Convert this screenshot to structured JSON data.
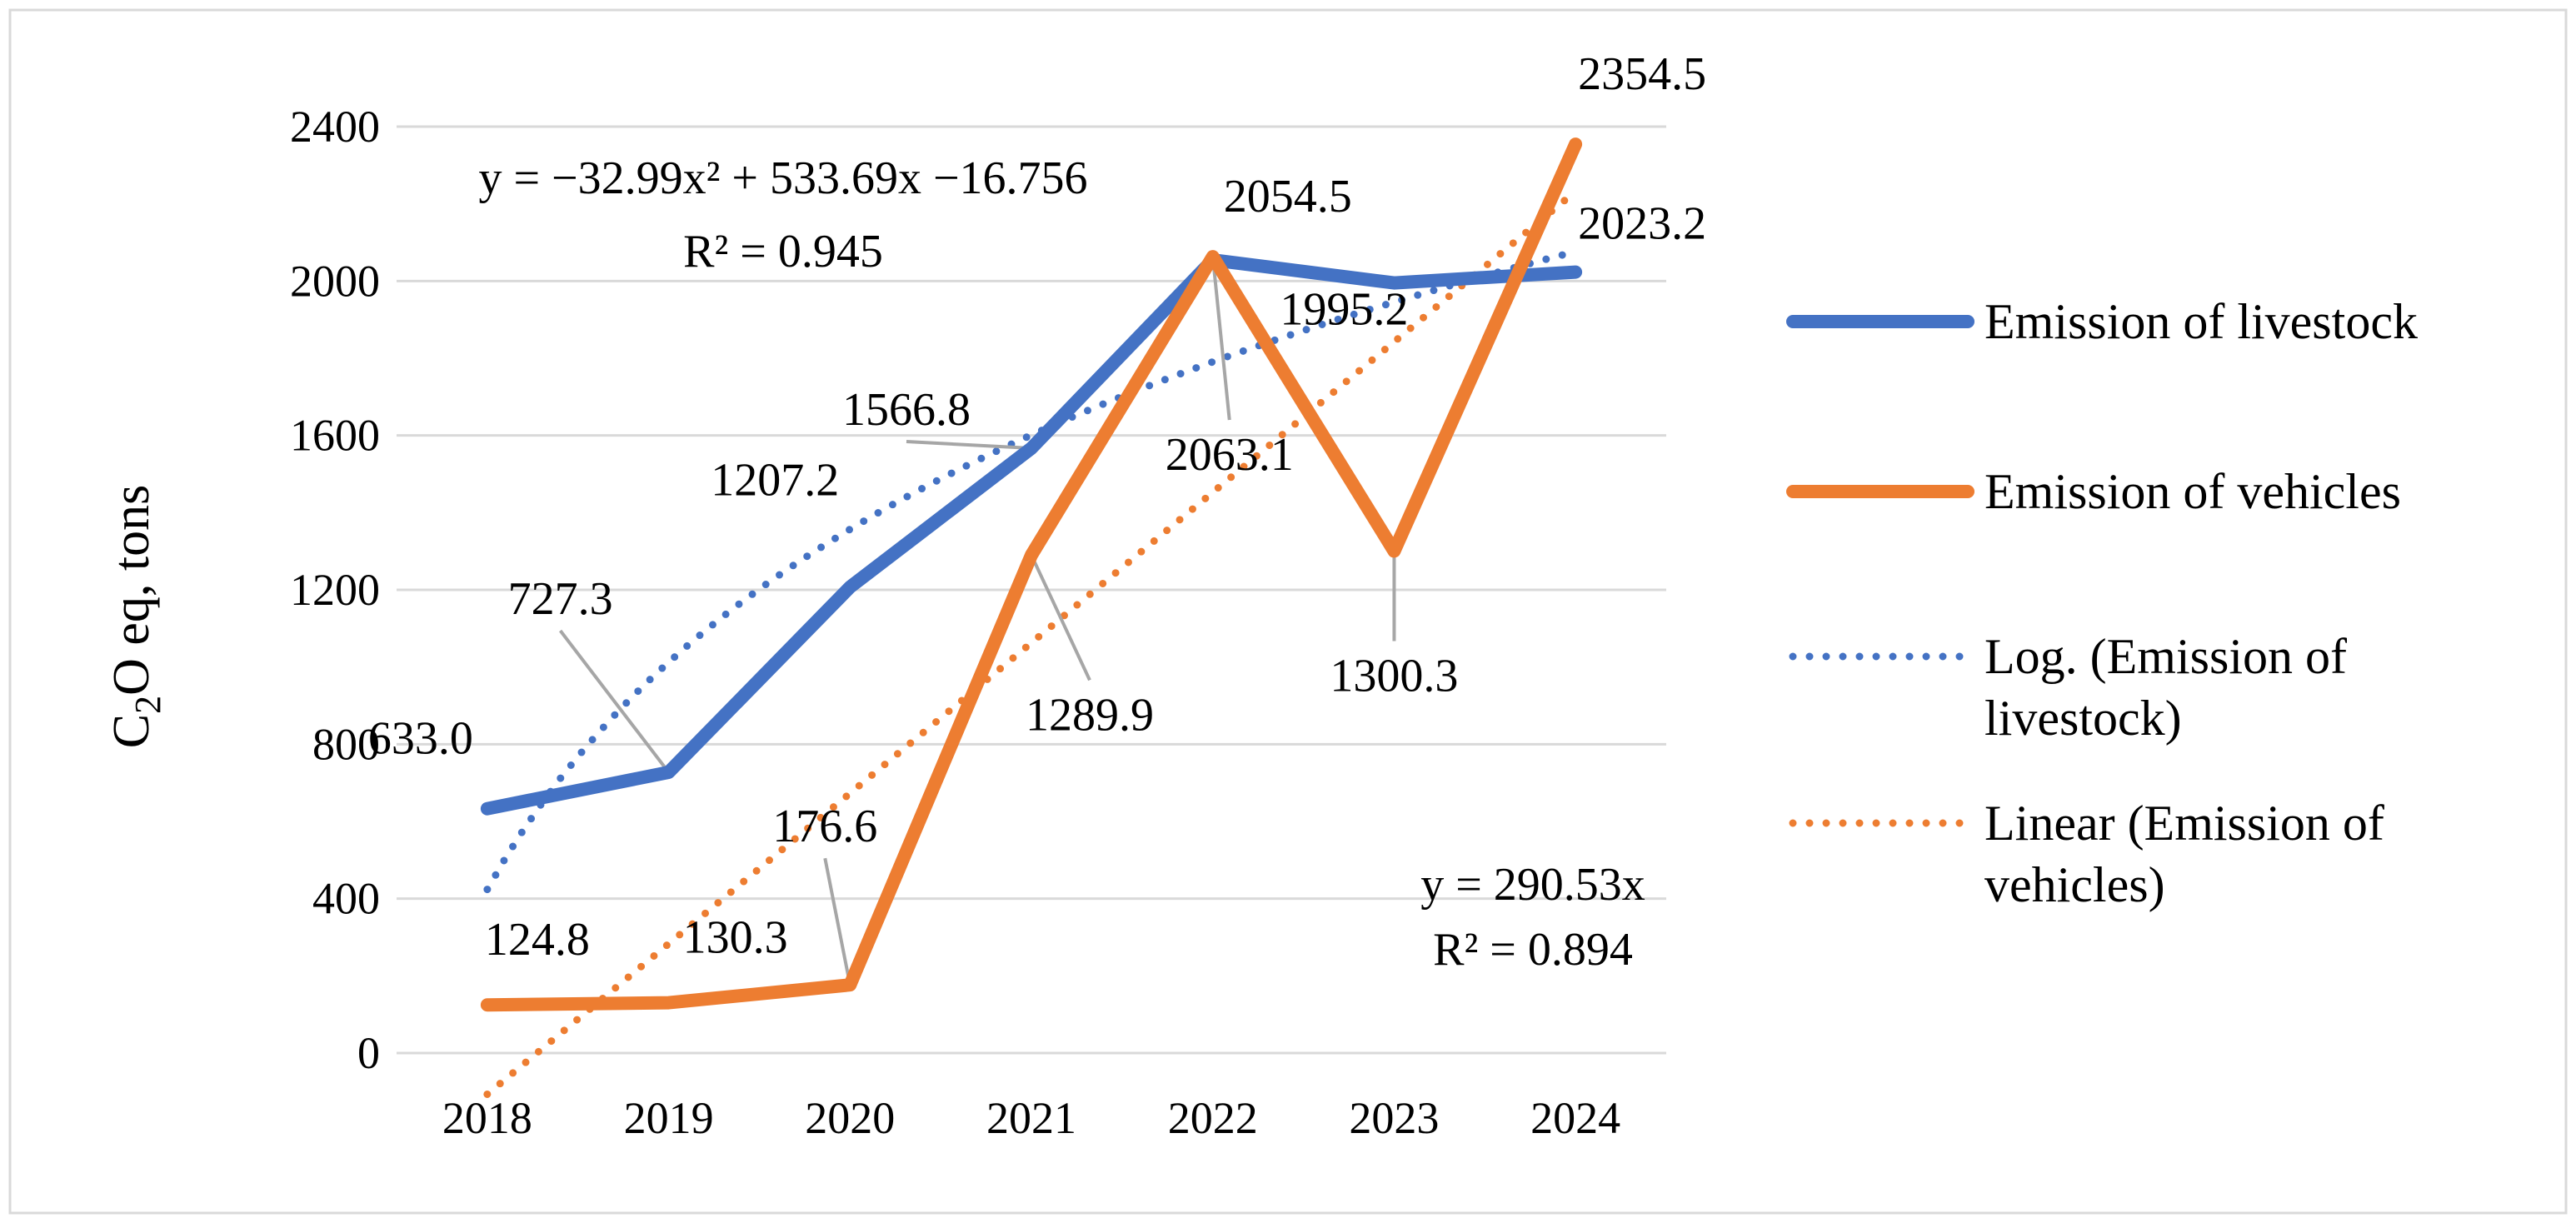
{
  "chart_data": {
    "type": "line",
    "x": [
      "2018",
      "2019",
      "2020",
      "2021",
      "2022",
      "2023",
      "2024"
    ],
    "ylabel": "C₂O eq, tons",
    "ylabel_main": "C",
    "ylabel_sub": "2",
    "ylabel_rest": "O eq, tons",
    "ylim": [
      0,
      2400
    ],
    "yticks": [
      "0",
      "400",
      "800",
      "1200",
      "1600",
      "2000",
      "2400"
    ],
    "grid": "horizontal",
    "legend_position": "right",
    "series": [
      {
        "name": "Emission of livestock",
        "color": "#4472C4",
        "style": "solid",
        "values": [
          633.0,
          727.3,
          1207.2,
          1566.8,
          2054.5,
          1995.2,
          2023.2
        ],
        "labels": [
          "633.0",
          "727.3",
          "1207.2",
          "1566.8",
          "2054.5",
          "1995.2",
          "2023.2"
        ]
      },
      {
        "name": "Emission of vehicles",
        "color": "#ED7D31",
        "style": "solid",
        "values": [
          124.8,
          130.3,
          176.6,
          1289.9,
          2063.1,
          1300.3,
          2354.5
        ],
        "labels": [
          "124.8",
          "130.3",
          "176.6",
          "1289.9",
          "2063.1",
          "1300.3",
          "2354.5"
        ]
      },
      {
        "name": "Log. (Emission of livestock)",
        "name_line1": "Log. (Emission of",
        "name_line2": "livestock)",
        "color": "#4472C4",
        "style": "dotted",
        "trendline": "logarithmic"
      },
      {
        "name": "Linear (Emission of vehicles)",
        "name_line1": "Linear (Emission of",
        "name_line2": "vehicles)",
        "color": "#ED7D31",
        "style": "dotted",
        "trendline": "linear"
      }
    ],
    "annotations": {
      "livestock_equation": "y = −32.99x² + 533.69x −16.756",
      "livestock_r2": "R² = 0.945",
      "vehicles_equation": "y = 290.53x",
      "vehicles_r2": "R² = 0.894"
    }
  }
}
